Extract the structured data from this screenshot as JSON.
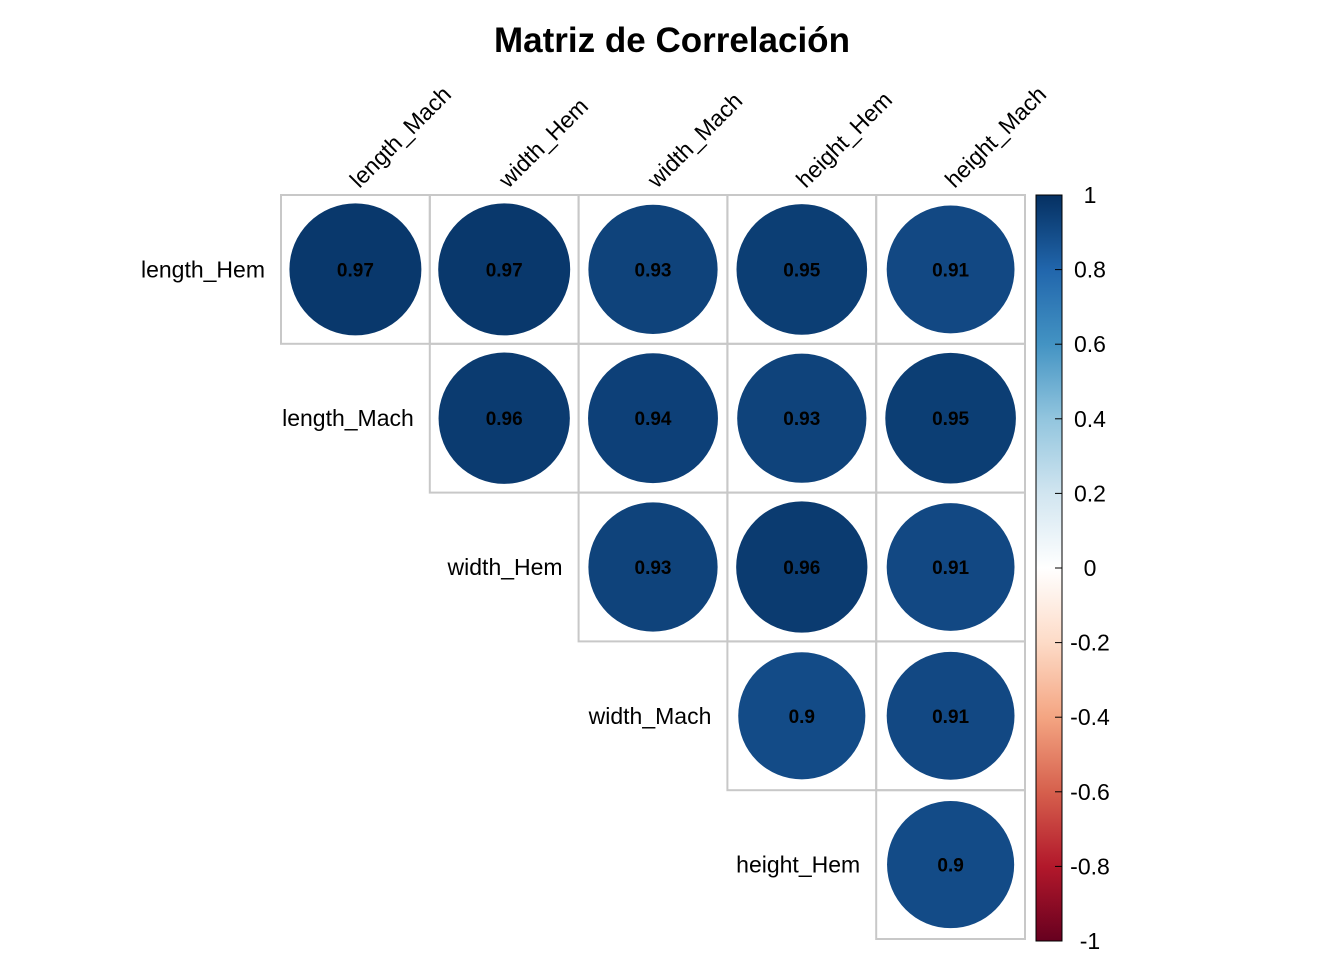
{
  "chart_data": {
    "type": "heatmap",
    "style": "correlation-circles-upper",
    "title": "Matriz de Correlación",
    "row_labels": [
      "length_Hem",
      "length_Mach",
      "width_Hem",
      "width_Mach",
      "height_Hem"
    ],
    "col_labels": [
      "length_Mach",
      "width_Hem",
      "width_Mach",
      "height_Hem",
      "height_Mach"
    ],
    "values": [
      [
        0.97,
        0.97,
        0.93,
        0.95,
        0.91
      ],
      [
        null,
        0.96,
        0.94,
        0.93,
        0.95
      ],
      [
        null,
        null,
        0.93,
        0.96,
        0.91
      ],
      [
        null,
        null,
        null,
        0.9,
        0.91
      ],
      [
        null,
        null,
        null,
        null,
        0.9
      ]
    ],
    "value_labels": [
      [
        "0.97",
        "0.97",
        "0.93",
        "0.95",
        "0.91"
      ],
      [
        null,
        "0.96",
        "0.94",
        "0.93",
        "0.95"
      ],
      [
        null,
        null,
        "0.93",
        "0.96",
        "0.91"
      ],
      [
        null,
        null,
        null,
        "0.9",
        "0.91"
      ],
      [
        null,
        null,
        null,
        null,
        "0.9"
      ]
    ],
    "colorbar": {
      "range": [
        -1,
        1
      ],
      "ticks": [
        "1",
        "0.8",
        "0.6",
        "0.4",
        "0.2",
        "0",
        "-0.2",
        "-0.4",
        "-0.6",
        "-0.8",
        "-1"
      ],
      "colors": [
        "#67001F",
        "#B2182B",
        "#D6604D",
        "#F4A582",
        "#FDDBC7",
        "#FFFFFF",
        "#D1E5F0",
        "#92C5DE",
        "#4393C3",
        "#2166AC",
        "#053061"
      ]
    },
    "grid": true,
    "legend": "right"
  }
}
